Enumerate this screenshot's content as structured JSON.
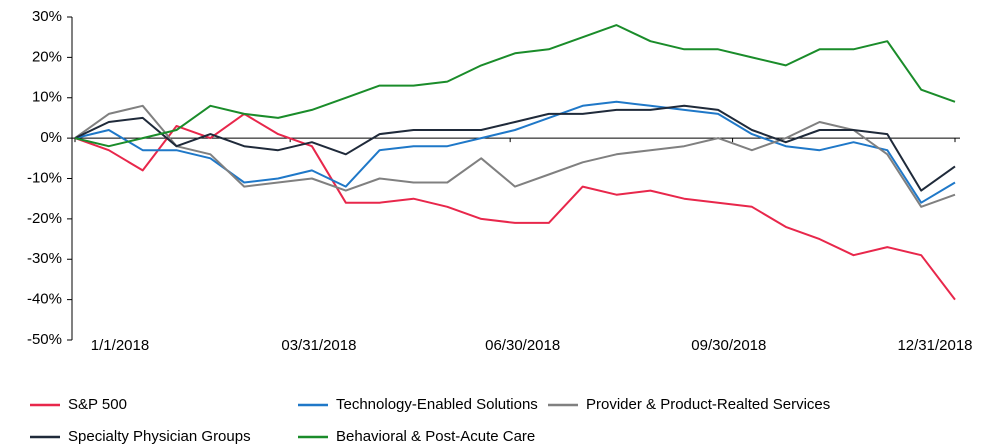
{
  "chart_data": {
    "type": "line",
    "x": [
      "2018-01-01",
      "2018-01-15",
      "2018-01-29",
      "2018-02-12",
      "2018-02-26",
      "2018-03-12",
      "2018-03-26",
      "2018-04-09",
      "2018-04-23",
      "2018-05-07",
      "2018-05-21",
      "2018-06-04",
      "2018-06-18",
      "2018-07-02",
      "2018-07-16",
      "2018-07-30",
      "2018-08-13",
      "2018-08-27",
      "2018-09-10",
      "2018-09-24",
      "2018-10-08",
      "2018-10-22",
      "2018-11-05",
      "2018-11-19",
      "2018-12-03",
      "2018-12-17",
      "2018-12-31"
    ],
    "xlim": [
      "2018-01-01",
      "2018-12-31"
    ],
    "xticks": [
      {
        "value": "2018-01-01",
        "label": "1/1/2018"
      },
      {
        "value": "2018-03-31",
        "label": "03/31/2018"
      },
      {
        "value": "2018-06-30",
        "label": "06/30/2018"
      },
      {
        "value": "2018-09-30",
        "label": "09/30/2018"
      },
      {
        "value": "2018-12-31",
        "label": "12/31/2018"
      }
    ],
    "ylim": [
      -50,
      30
    ],
    "yticks": [
      {
        "value": 30,
        "label": "30%"
      },
      {
        "value": 20,
        "label": "20%"
      },
      {
        "value": 10,
        "label": "10%"
      },
      {
        "value": 0,
        "label": "0%"
      },
      {
        "value": -10,
        "label": "-10%"
      },
      {
        "value": -20,
        "label": "-20%"
      },
      {
        "value": -30,
        "label": "-30%"
      },
      {
        "value": -40,
        "label": "-40%"
      },
      {
        "value": -50,
        "label": "-50%"
      }
    ],
    "legend": "bottom",
    "series": [
      {
        "name": "S&P 500",
        "color": "#e8274b",
        "values": [
          0,
          -3,
          -8,
          3,
          0,
          6,
          1,
          -2,
          -16,
          -16,
          -15,
          -17,
          -20,
          -21,
          -21,
          -12,
          -14,
          -13,
          -15,
          -16,
          -17,
          -22,
          -25,
          -29,
          -27,
          -29,
          -40
        ]
      },
      {
        "name": "Technology-Enabled Solutions",
        "color": "#1f78c8",
        "values": [
          0,
          2,
          -3,
          -3,
          -5,
          -11,
          -10,
          -8,
          -12,
          -3,
          -2,
          -2,
          0,
          2,
          5,
          8,
          9,
          8,
          7,
          6,
          1,
          -2,
          -3,
          -1,
          -3,
          -16,
          -11
        ]
      },
      {
        "name": "Provider & Product-Realted Services",
        "color": "#808080",
        "values": [
          0,
          6,
          8,
          -2,
          -4,
          -12,
          -11,
          -10,
          -13,
          -10,
          -11,
          -11,
          -5,
          -12,
          -9,
          -6,
          -4,
          -3,
          -2,
          0,
          -3,
          0,
          4,
          2,
          -4,
          -17,
          -14
        ]
      },
      {
        "name": "Specialty Physician Groups",
        "color": "#1f2a3a",
        "values": [
          0,
          4,
          5,
          -2,
          1,
          -2,
          -3,
          -1,
          -4,
          1,
          2,
          2,
          2,
          4,
          6,
          6,
          7,
          7,
          8,
          7,
          2,
          -1,
          2,
          2,
          1,
          -13,
          -7
        ]
      },
      {
        "name": "Behavioral & Post-Acute Care",
        "color": "#1a8c2a",
        "values": [
          0,
          -2,
          0,
          2,
          8,
          6,
          5,
          7,
          10,
          13,
          13,
          14,
          18,
          21,
          22,
          25,
          28,
          24,
          22,
          22,
          20,
          18,
          22,
          22,
          24,
          12,
          9
        ]
      }
    ]
  }
}
